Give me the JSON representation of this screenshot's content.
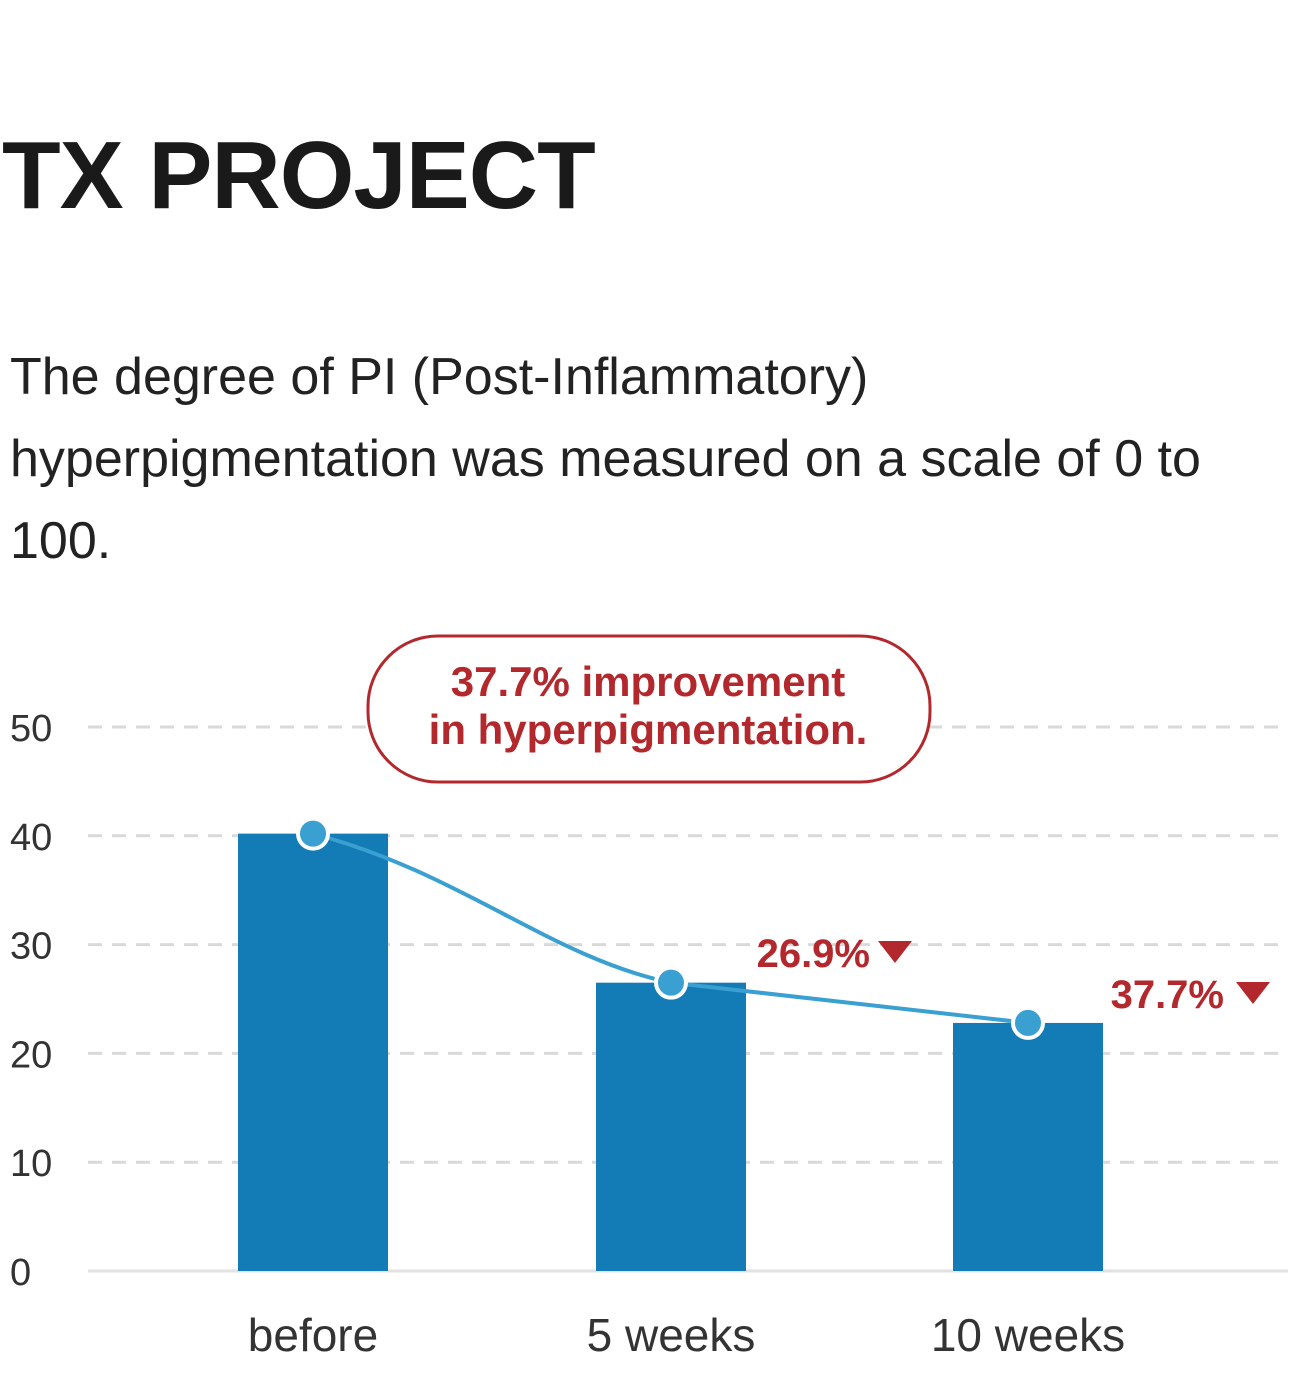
{
  "header": {
    "title": "TX PROJECT",
    "description": "The degree of PI (Post-Inflammatory) hyperpigmentation was measured on a scale of 0 to 100."
  },
  "colors": {
    "bar": "#137bb5",
    "line": "#3a9fd1",
    "accent_red": "#b3282d",
    "grid": "#d9d9d9"
  },
  "chart_data": {
    "type": "bar",
    "title": "",
    "xlabel": "",
    "ylabel": "",
    "categories": [
      "before",
      "5 weeks",
      "10 weeks"
    ],
    "values": [
      40.2,
      26.5,
      22.8
    ],
    "ylim": [
      0,
      50
    ],
    "yticks": [
      0,
      10,
      20,
      30,
      40,
      50
    ],
    "grid": true,
    "overlay_line": true,
    "annotations": [
      {
        "category": "5 weeks",
        "text": "26.9%"
      },
      {
        "category": "10 weeks",
        "text": "37.7%"
      }
    ],
    "callout": {
      "line1": "37.7% improvement",
      "line2": "in hyperpigmentation."
    }
  }
}
